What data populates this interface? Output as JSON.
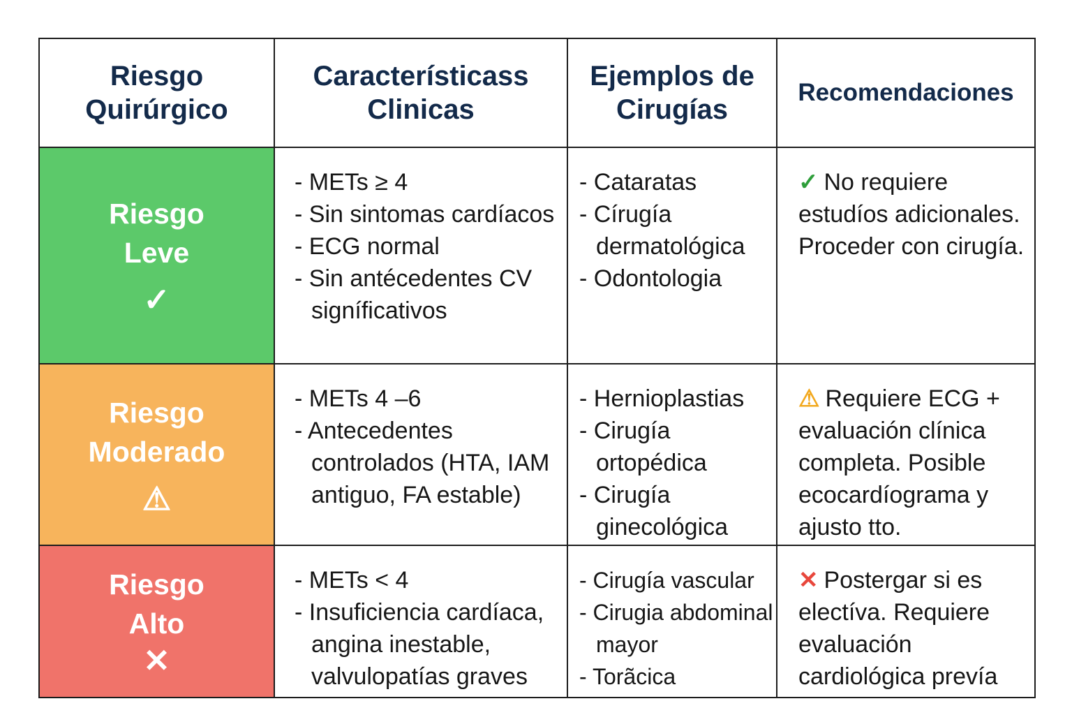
{
  "headers": [
    "Riesgo Quirúrgico",
    "Característicass Clinicas",
    "Ejemplos de Cirugías",
    "Recomendaciones"
  ],
  "colors": {
    "leve": "#5cc96a",
    "moderado": "#f7b45c",
    "alto": "#f0736a",
    "header_text": "#132a4a",
    "check": "#2e9e3a",
    "warning": "#f2a81d",
    "cross": "#e8473c"
  },
  "rows": [
    {
      "risk": "Riesgo Leve",
      "icon": "check-icon",
      "icon_glyph": "✓",
      "features": [
        "- METs ≥ 4",
        "- Sin sintomas cardíacos",
        "- ECG normal",
        "- Sin antécedentes CV signíficativos"
      ],
      "examples": [
        "- Cataratas",
        "- Círugía dermatológica",
        "- Odontologia"
      ],
      "rec_glyph": "✓",
      "recommendation": "No requiere estudíos adicionales. Proceder con cirugía."
    },
    {
      "risk": "Riesgo Moderado",
      "icon": "warning-icon",
      "icon_glyph": "⚠",
      "features": [
        "- METs 4 –6",
        "- Antecedentes controlados (HTA, IAM antiguo, FA estable)"
      ],
      "examples": [
        "- Hernioplastias",
        "- Cirugía ortopédica",
        "- Cirugía ginecológica"
      ],
      "rec_glyph": "⚠",
      "recommendation": "Requiere ECG + evaluación clínica completa. Posible ecocardíograma y ajusto tto."
    },
    {
      "risk": "Riesgo Alto",
      "icon": "cross-icon",
      "icon_glyph": "✕",
      "features": [
        "- METs < 4",
        "- Insuficiencia cardíaca, angina inestable, valvulopatías graves"
      ],
      "examples": [
        "- Cirugía vascular",
        "- Cirugia abdominal mayor",
        "- Torãcica"
      ],
      "rec_glyph": "✕",
      "recommendation": "Postergar si es electíva. Requiere evaluación cardiológica prevía"
    }
  ]
}
